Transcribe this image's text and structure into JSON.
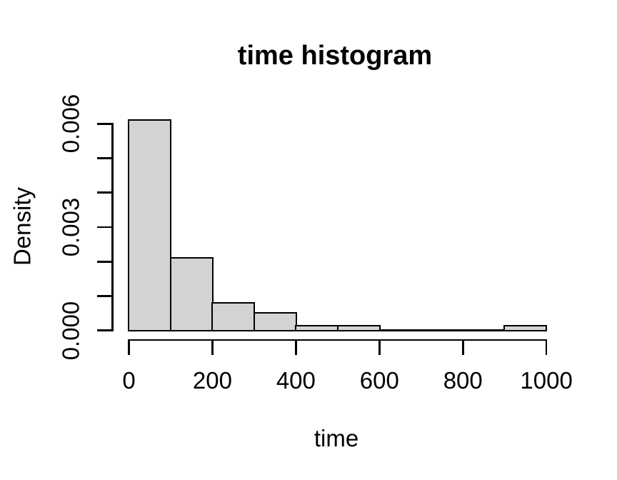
{
  "chart_data": {
    "type": "bar",
    "chart_kind": "histogram",
    "title": "time histogram",
    "xlabel": "time",
    "ylabel": "Density",
    "xlim": [
      0,
      1000
    ],
    "ylim": [
      0,
      0.006
    ],
    "grid": false,
    "legend": false,
    "bin_breaks": [
      0,
      100,
      200,
      300,
      400,
      500,
      600,
      700,
      800,
      900,
      1000
    ],
    "densities": [
      0.0061,
      0.0021,
      0.0008,
      0.0005,
      0.00013,
      0.00013,
      0,
      0,
      0,
      0.00014
    ],
    "x_ticks": [
      {
        "value": 0,
        "label": "0"
      },
      {
        "value": 200,
        "label": "200"
      },
      {
        "value": 400,
        "label": "400"
      },
      {
        "value": 600,
        "label": "600"
      },
      {
        "value": 800,
        "label": "800"
      },
      {
        "value": 1000,
        "label": "1000"
      }
    ],
    "y_ticks": [
      {
        "value": 0,
        "label": "0.000"
      },
      {
        "value": 0.001,
        "label": ""
      },
      {
        "value": 0.002,
        "label": ""
      },
      {
        "value": 0.003,
        "label": "0.003"
      },
      {
        "value": 0.004,
        "label": ""
      },
      {
        "value": 0.005,
        "label": ""
      },
      {
        "value": 0.006,
        "label": "0.006"
      }
    ],
    "colors": {
      "bar_fill": "#d3d3d3",
      "bar_border": "#000000",
      "axis": "#000000",
      "text": "#000000",
      "background": "#ffffff"
    }
  }
}
